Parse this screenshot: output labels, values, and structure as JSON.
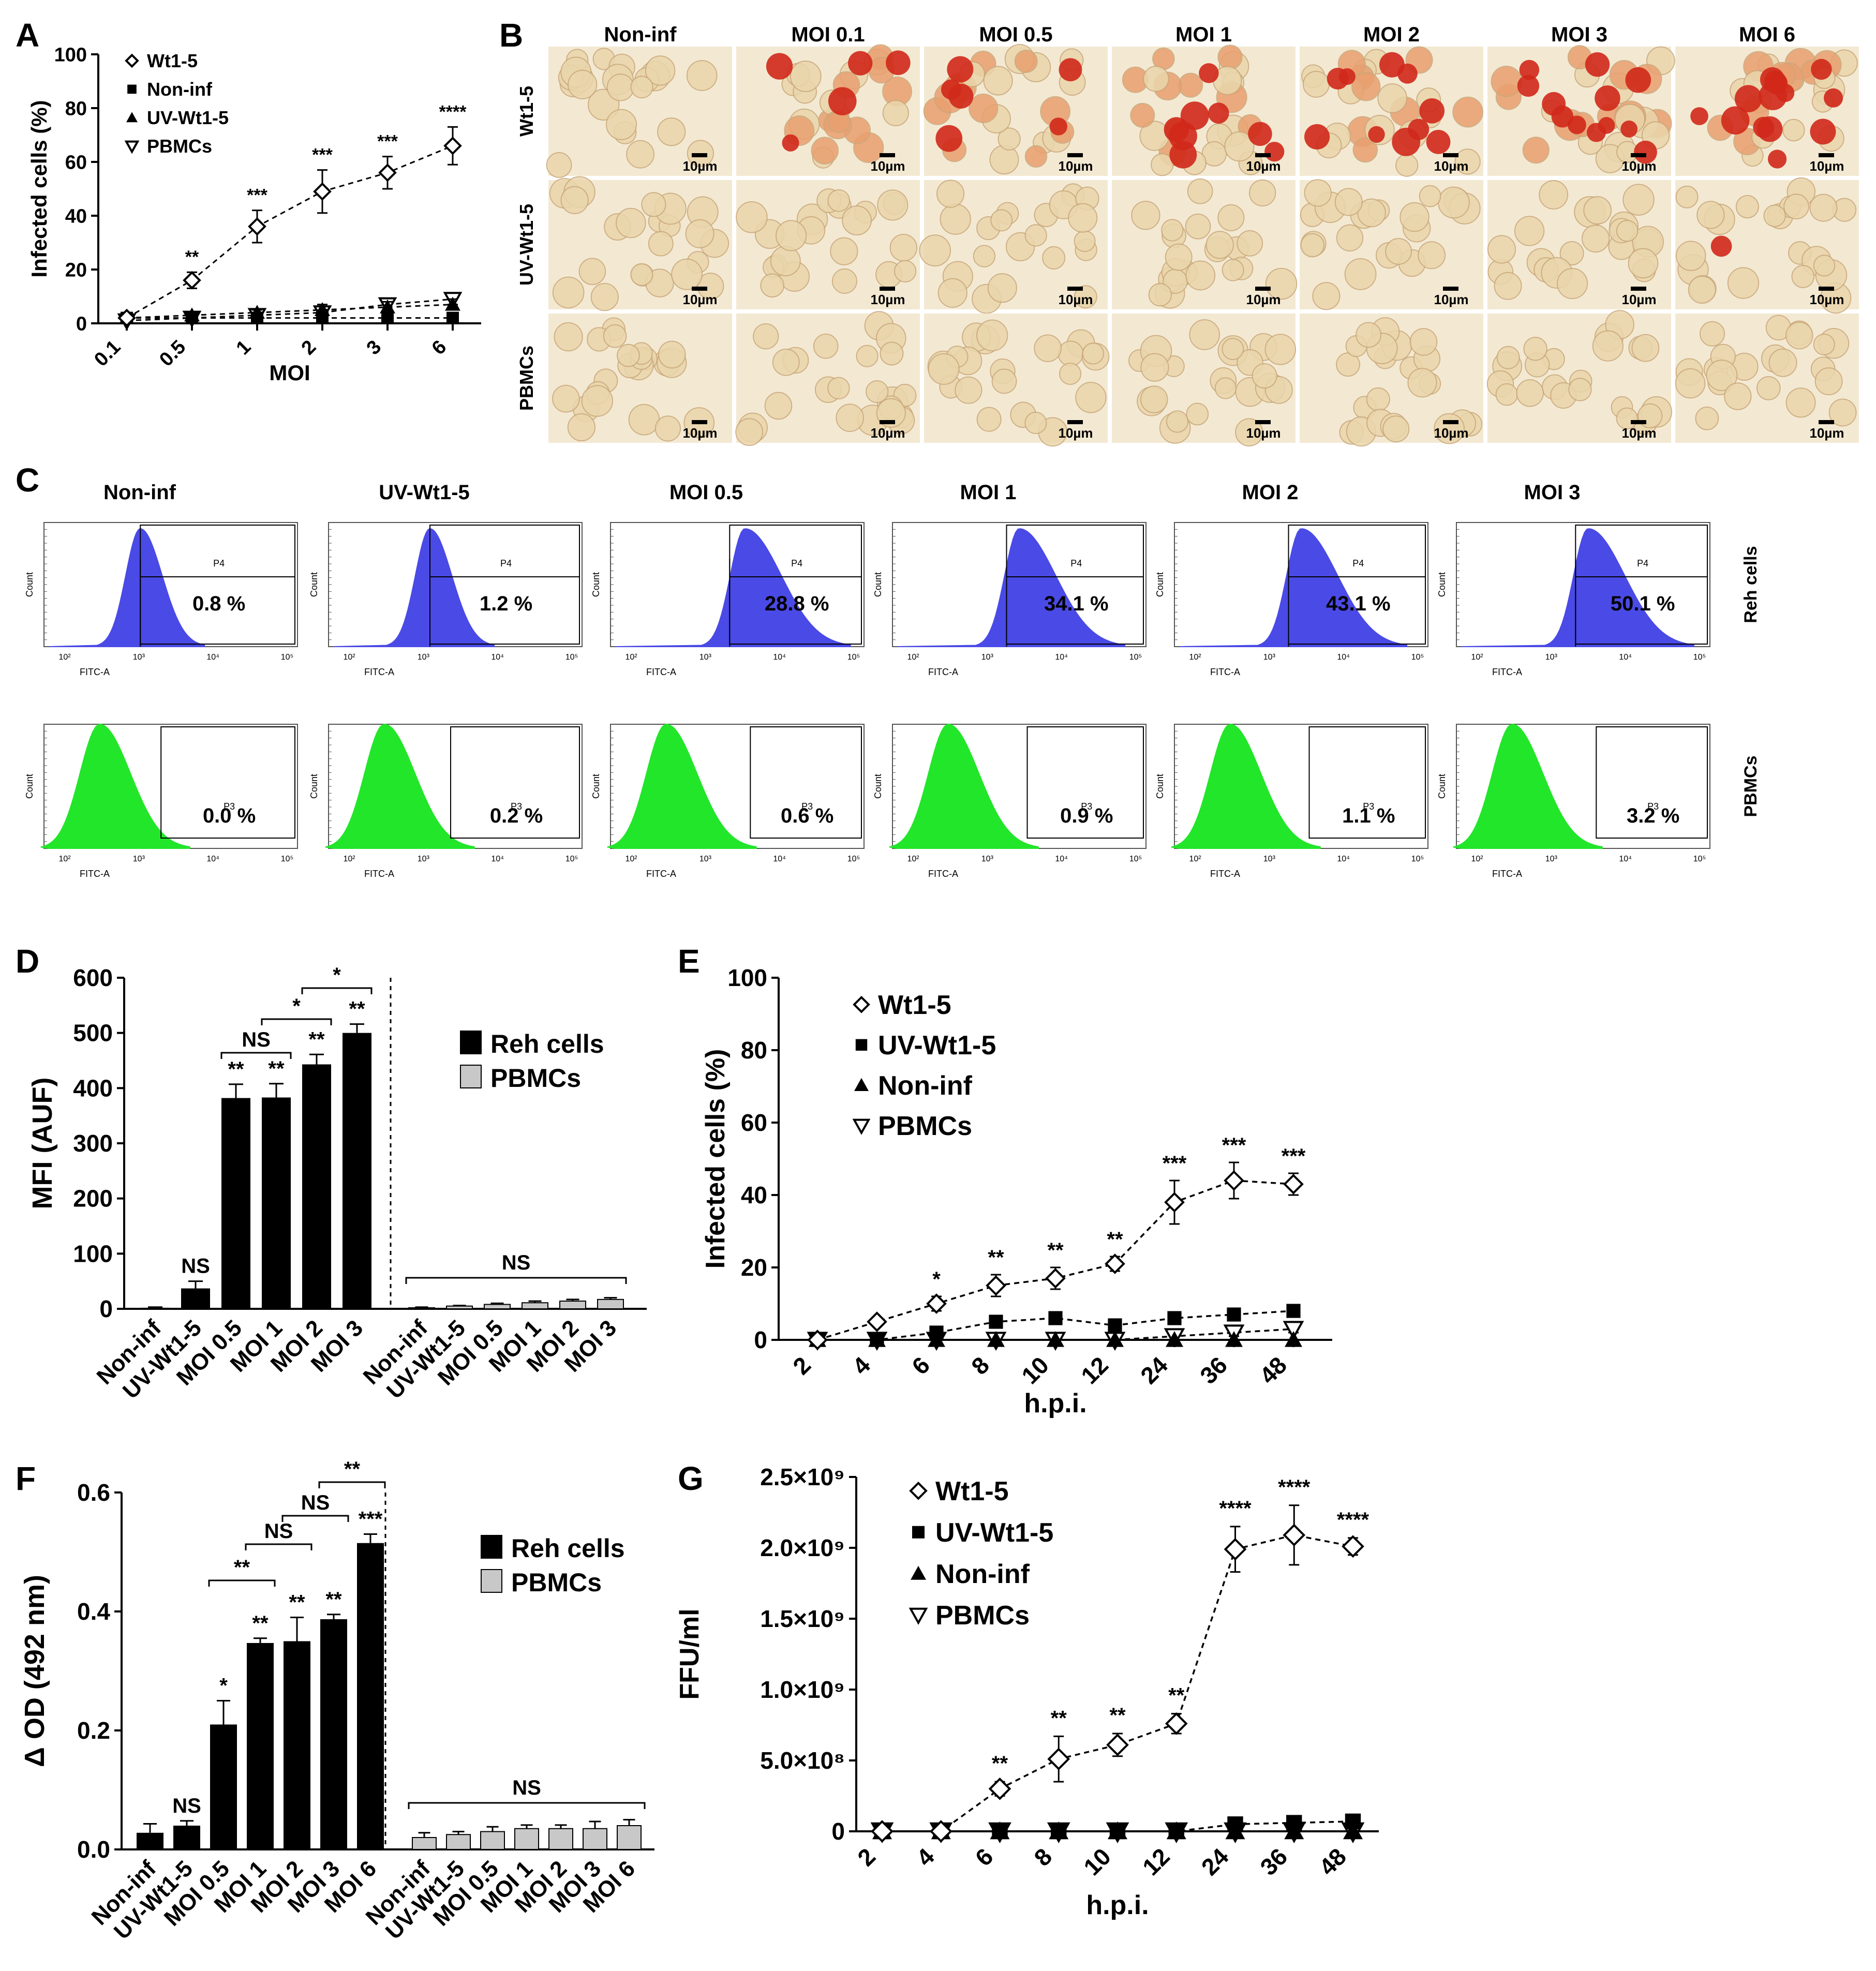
{
  "panel_letters": [
    "A",
    "B",
    "C",
    "D",
    "E",
    "F",
    "G"
  ],
  "colors": {
    "reh_hist": "#4a4ae6",
    "pbmc_hist": "#22e62a",
    "stain_light": "#eee2c4",
    "stain_red": "#d0281a",
    "tile_bg": "#f3e9d2",
    "pbmc_bar": "#c8c8c8"
  },
  "panel_b": {
    "col_labels": [
      "Non-inf",
      "MOI 0.1",
      "MOI 0.5",
      "MOI 1",
      "MOI 2",
      "MOI 3",
      "MOI 6"
    ],
    "row_labels": [
      "Wt1-5",
      "UV-Wt1-5",
      "PBMCs"
    ],
    "scale_label": "10µm",
    "red_counts": [
      [
        0,
        5,
        6,
        8,
        10,
        12,
        14
      ],
      [
        0,
        0,
        0,
        0,
        0,
        0,
        1
      ],
      [
        0,
        0,
        0,
        0,
        0,
        0,
        0
      ]
    ]
  },
  "panel_c": {
    "col_labels": [
      "Non-inf",
      "UV-Wt1-5",
      "MOI 0.5",
      "MOI 1",
      "MOI 2",
      "MOI 3"
    ],
    "row_labels": [
      "Reh cells",
      "PBMCs"
    ],
    "gates": [
      "P4",
      "P3"
    ],
    "axis_x": "FITC-A",
    "axis_y": "Count",
    "decades": [
      "10²",
      "10³",
      "10⁴",
      "10⁵"
    ],
    "reh_percents": [
      "0.8 %",
      "1.2 %",
      "28.8 %",
      "34.1 %",
      "43.1 %",
      "50.1 %"
    ],
    "pbmc_percents": [
      "0.0 %",
      "0.2 %",
      "0.6 %",
      "0.9 %",
      "1.1 %",
      "3.2 %"
    ]
  },
  "chart_data": [
    {
      "panel": "A",
      "type": "line",
      "xlabel": "MOI",
      "ylabel": "Infected cells (%)",
      "ylim": [
        0,
        100
      ],
      "yticks": [
        0,
        20,
        40,
        60,
        80,
        100
      ],
      "categories": [
        "0.1",
        "0.5",
        "1",
        "2",
        "3",
        "6"
      ],
      "legend": [
        "Wt1-5",
        "Non-inf",
        "UV-Wt1-5",
        "PBMCs"
      ],
      "series": [
        {
          "name": "Wt1-5",
          "marker": "diamond-open",
          "values": [
            2,
            16,
            36,
            49,
            56,
            66
          ],
          "errors": [
            1,
            3,
            6,
            8,
            6,
            7
          ]
        },
        {
          "name": "Non-inf",
          "marker": "square",
          "values": [
            2,
            2,
            2,
            2,
            2,
            2
          ],
          "errors": [
            0.5,
            0.5,
            0.5,
            0.5,
            0.5,
            0.5
          ]
        },
        {
          "name": "UV-Wt1-5",
          "marker": "triangle",
          "values": [
            2,
            3,
            4,
            5,
            6,
            7
          ],
          "errors": [
            1,
            1,
            1,
            2,
            2,
            2
          ]
        },
        {
          "name": "PBMCs",
          "marker": "triangle-down-open",
          "values": [
            1,
            2,
            3,
            4,
            7,
            9
          ],
          "errors": [
            1,
            1,
            1,
            2,
            2,
            2
          ]
        }
      ],
      "annotations": [
        "",
        "**",
        "***",
        "***",
        "***",
        "****"
      ]
    },
    {
      "panel": "D",
      "type": "bar",
      "ylabel": "MFI (AUF)",
      "ylim": [
        0,
        600
      ],
      "yticks": [
        0,
        100,
        200,
        300,
        400,
        500,
        600
      ],
      "legend": [
        "Reh cells",
        "PBMCs"
      ],
      "groups": [
        {
          "name": "Reh cells",
          "categories": [
            "Non-inf",
            "UV-Wt1-5",
            "MOI 0.5",
            "MOI 1",
            "MOI 2",
            "MOI 3"
          ],
          "values": [
            2,
            37,
            382,
            383,
            443,
            500
          ],
          "errors": [
            1,
            13,
            25,
            25,
            18,
            16
          ],
          "labels": [
            "",
            "NS",
            "**",
            "**",
            "**",
            "**"
          ]
        },
        {
          "name": "PBMCs",
          "categories": [
            "Non-inf",
            "UV-Wt1-5",
            "MOI 0.5",
            "MOI 1",
            "MOI 2",
            "MOI 3"
          ],
          "values": [
            2,
            5,
            8,
            11,
            14,
            17
          ],
          "errors": [
            1,
            1,
            2,
            3,
            3,
            3
          ]
        }
      ],
      "brackets": [
        {
          "from": 2,
          "to": 3,
          "label": "NS"
        },
        {
          "from": 3,
          "to": 4,
          "label": "*"
        },
        {
          "from": 4,
          "to": 5,
          "label": "*"
        }
      ],
      "pbmc_bracket_label": "NS"
    },
    {
      "panel": "E",
      "type": "line",
      "xlabel": "h.p.i.",
      "ylabel": "Infected cells (%)",
      "ylim": [
        0,
        100
      ],
      "yticks": [
        0,
        20,
        40,
        60,
        80,
        100
      ],
      "categories": [
        "2",
        "4",
        "6",
        "8",
        "10",
        "12",
        "24",
        "36",
        "48"
      ],
      "legend": [
        "Wt1-5",
        "UV-Wt1-5",
        "Non-inf",
        "PBMCs"
      ],
      "series": [
        {
          "name": "Wt1-5",
          "marker": "diamond-open",
          "values": [
            0,
            5,
            10,
            15,
            17,
            21,
            38,
            44,
            43
          ],
          "errors": [
            0.5,
            1,
            2,
            3,
            3,
            2,
            6,
            5,
            3
          ]
        },
        {
          "name": "UV-Wt1-5",
          "marker": "square",
          "values": [
            0,
            0,
            2,
            5,
            6,
            4,
            6,
            7,
            8
          ],
          "errors": [
            0,
            0,
            1,
            1,
            1,
            1,
            1,
            1,
            1
          ]
        },
        {
          "name": "Non-inf",
          "marker": "triangle",
          "values": [
            0,
            0,
            0,
            0,
            0,
            0,
            0,
            0,
            0
          ],
          "errors": [
            0,
            0,
            0,
            0,
            0,
            0,
            0,
            0,
            0
          ]
        },
        {
          "name": "PBMCs",
          "marker": "triangle-down-open",
          "values": [
            0,
            0,
            0,
            0,
            0,
            0,
            1,
            2,
            3
          ],
          "errors": [
            0,
            0,
            0,
            0,
            0,
            0,
            1,
            1,
            1
          ]
        }
      ],
      "annotations": [
        "",
        "",
        "*",
        "**",
        "**",
        "**",
        "***",
        "***",
        "***"
      ]
    },
    {
      "panel": "F",
      "type": "bar",
      "ylabel": "Δ OD (492 nm)",
      "ylim": [
        0,
        0.6
      ],
      "yticks": [
        0.0,
        0.2,
        0.4,
        0.6
      ],
      "legend": [
        "Reh cells",
        "PBMCs"
      ],
      "groups": [
        {
          "name": "Reh cells",
          "categories": [
            "Non-inf",
            "UV-Wt1-5",
            "MOI 0.5",
            "MOI 1",
            "MOI 2",
            "MOI 3",
            "MOI 6"
          ],
          "values": [
            0.028,
            0.04,
            0.21,
            0.347,
            0.35,
            0.387,
            0.515
          ],
          "errors": [
            0.015,
            0.008,
            0.04,
            0.008,
            0.04,
            0.008,
            0.015
          ],
          "labels": [
            "",
            "NS",
            "*",
            "**",
            "**",
            "**",
            "***"
          ]
        },
        {
          "name": "PBMCs",
          "categories": [
            "Non-inf",
            "UV-Wt1-5",
            "MOI 0.5",
            "MOI 1",
            "MOI 2",
            "MOI 3",
            "MOI 6"
          ],
          "values": [
            0.02,
            0.025,
            0.03,
            0.035,
            0.035,
            0.035,
            0.04
          ],
          "errors": [
            0.008,
            0.005,
            0.008,
            0.006,
            0.006,
            0.012,
            0.01
          ]
        }
      ],
      "brackets": [
        {
          "from": 2,
          "to": 3,
          "label": "**"
        },
        {
          "from": 3,
          "to": 4,
          "label": "NS"
        },
        {
          "from": 4,
          "to": 5,
          "label": "NS"
        },
        {
          "from": 5,
          "to": 6,
          "label": "**"
        }
      ],
      "pbmc_bracket_label": "NS"
    },
    {
      "panel": "G",
      "type": "line",
      "xlabel": "h.p.i.",
      "ylabel": "FFU/ml",
      "ylim": [
        0,
        2500000000
      ],
      "yticks": [
        0,
        500000000,
        1000000000,
        1500000000,
        2000000000,
        2500000000
      ],
      "ytick_labels": [
        "0",
        "5.0×10⁸",
        "1.0×10⁹",
        "1.5×10⁹",
        "2.0×10⁹",
        "2.5×10⁹"
      ],
      "categories": [
        "2",
        "4",
        "6",
        "8",
        "10",
        "12",
        "24",
        "36",
        "48"
      ],
      "legend": [
        "Wt1-5",
        "UV-Wt1-5",
        "Non-inf",
        "PBMCs"
      ],
      "series": [
        {
          "name": "Wt1-5",
          "marker": "diamond-open",
          "values": [
            0,
            0,
            300000000,
            510000000,
            610000000,
            760000000,
            1990000000,
            2090000000,
            2010000000
          ],
          "errors": [
            0,
            0,
            50000000,
            160000000,
            80000000,
            70000000,
            160000000,
            210000000,
            60000000
          ]
        },
        {
          "name": "UV-Wt1-5",
          "marker": "square",
          "values": [
            0,
            0,
            0,
            0,
            0,
            0,
            50000000,
            60000000,
            70000000
          ],
          "errors": [
            0,
            0,
            0,
            0,
            0,
            0,
            10000000,
            10000000,
            10000000
          ]
        },
        {
          "name": "Non-inf",
          "marker": "triangle",
          "values": [
            0,
            0,
            0,
            0,
            0,
            0,
            0,
            0,
            0
          ],
          "errors": [
            0,
            0,
            0,
            0,
            0,
            0,
            0,
            0,
            0
          ]
        },
        {
          "name": "PBMCs",
          "marker": "triangle-down-open",
          "values": [
            0,
            0,
            0,
            0,
            0,
            0,
            0,
            0,
            0
          ],
          "errors": [
            0,
            0,
            0,
            0,
            0,
            0,
            0,
            0,
            0
          ]
        }
      ],
      "annotations": [
        "",
        "",
        "**",
        "**",
        "**",
        "**",
        "****",
        "****",
        "****"
      ]
    }
  ]
}
